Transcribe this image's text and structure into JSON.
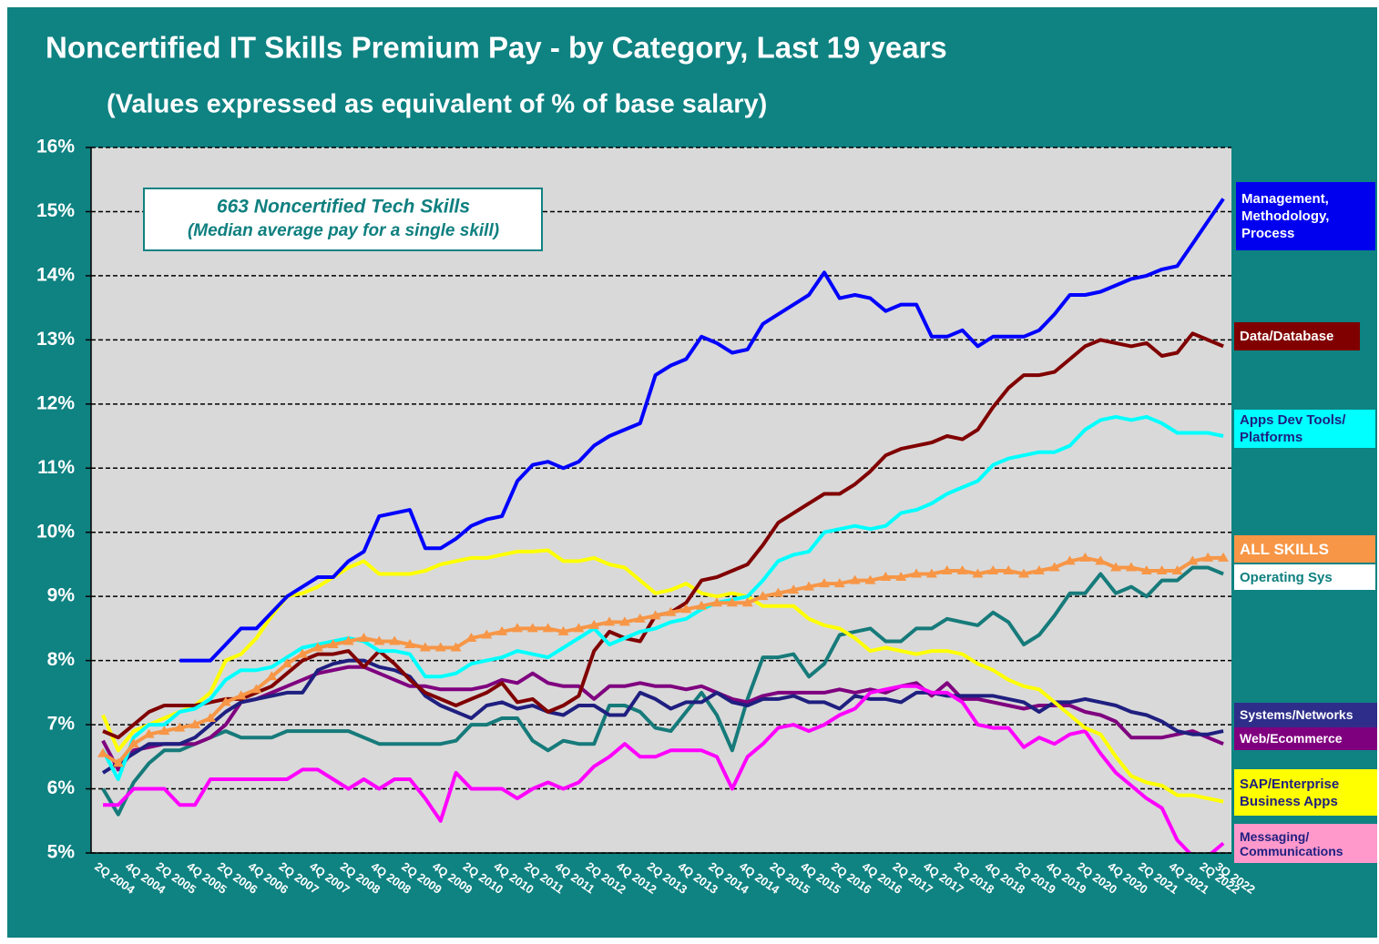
{
  "chart_data": {
    "type": "line",
    "title": "Noncertified IT Skills Premium Pay - by Category, Last 19 years",
    "subtitle": "(Values expressed as equivalent of % of base salary)",
    "annotations": [
      "663 Noncertified Tech Skills",
      "(Median average pay for a single skill)"
    ],
    "categories": [
      "2Q 2004",
      null,
      "4Q 2004",
      null,
      "2Q 2005",
      null,
      "4Q 2005",
      null,
      "2Q 2006",
      null,
      "4Q 2006",
      null,
      "2Q 2007",
      null,
      "4Q 2007",
      null,
      "2Q 2008",
      null,
      "4Q 2008",
      null,
      "2Q 2009",
      null,
      "4Q 2009",
      null,
      "2Q 2010",
      null,
      "4Q 2010",
      null,
      "2Q 2011",
      null,
      "4Q 2011",
      null,
      "2Q 2012",
      null,
      "4Q 2012",
      null,
      "2Q 2013",
      null,
      "4Q 2013",
      null,
      "2Q 2014",
      null,
      "4Q 2014",
      null,
      "2Q 2015",
      null,
      "4Q 2015",
      null,
      "2Q 2016",
      null,
      "4Q 2016",
      null,
      "2Q 2017",
      null,
      "4Q 2017",
      null,
      "2Q 2018",
      null,
      "4Q 2018",
      null,
      "2Q 2019",
      null,
      "4Q 2019",
      null,
      "2Q 2020",
      null,
      "4Q 2020",
      null,
      "2Q 2021",
      null,
      "4Q 2021",
      null,
      "2Q 2022",
      "3Q 2022"
    ],
    "ylim": [
      5,
      16
    ],
    "yticks": [
      {
        "value": 5,
        "label": "5%"
      },
      {
        "value": 6,
        "label": "6%"
      },
      {
        "value": 7,
        "label": "7%"
      },
      {
        "value": 8,
        "label": "8%"
      },
      {
        "value": 9,
        "label": "9%"
      },
      {
        "value": 10,
        "label": "10%"
      },
      {
        "value": 11,
        "label": "11%"
      },
      {
        "value": 12,
        "label": "12%"
      },
      {
        "value": 13,
        "label": "13%"
      },
      {
        "value": 14,
        "label": "14%"
      },
      {
        "value": 15,
        "label": "15%"
      },
      {
        "value": 16,
        "label": "16%"
      }
    ],
    "grid": true,
    "series": [
      {
        "name": "Management, Methodology, Process",
        "color": "#0000ff",
        "label_fill": "#0000ee",
        "label_text": "#ffffff",
        "values": [
          null,
          null,
          null,
          null,
          null,
          8.0,
          8.0,
          8.0,
          8.25,
          8.5,
          8.5,
          8.75,
          9.0,
          9.15,
          9.3,
          9.3,
          9.55,
          9.7,
          10.25,
          10.3,
          10.35,
          9.75,
          9.75,
          9.9,
          10.1,
          10.2,
          10.25,
          10.8,
          11.05,
          11.1,
          11.0,
          11.1,
          11.35,
          11.5,
          11.6,
          11.7,
          12.45,
          12.6,
          12.7,
          13.05,
          12.95,
          12.8,
          12.85,
          13.25,
          13.4,
          13.55,
          13.7,
          14.05,
          13.65,
          13.7,
          13.65,
          13.45,
          13.55,
          13.55,
          13.05,
          13.05,
          13.15,
          12.9,
          13.05,
          13.05,
          13.05,
          13.15,
          13.4,
          13.7,
          13.7,
          13.75,
          13.85,
          13.95,
          14.0,
          14.1,
          14.15,
          14.5,
          14.85,
          15.2
        ]
      },
      {
        "name": "Data/Database",
        "color": "#800000",
        "label_fill": "#800000",
        "label_text": "#ffffff",
        "values": [
          6.9,
          6.8,
          7.0,
          7.2,
          7.3,
          7.3,
          7.3,
          7.35,
          7.4,
          7.4,
          7.5,
          7.6,
          7.8,
          8.0,
          8.1,
          8.1,
          8.15,
          7.9,
          8.15,
          7.95,
          7.7,
          7.5,
          7.4,
          7.3,
          7.4,
          7.5,
          7.65,
          7.35,
          7.4,
          7.2,
          7.3,
          7.45,
          8.15,
          8.45,
          8.35,
          8.3,
          8.7,
          8.75,
          8.9,
          9.25,
          9.3,
          9.4,
          9.5,
          9.8,
          10.15,
          10.3,
          10.45,
          10.6,
          10.6,
          10.75,
          10.95,
          11.2,
          11.3,
          11.35,
          11.4,
          11.5,
          11.45,
          11.6,
          11.95,
          12.25,
          12.45,
          12.45,
          12.5,
          12.7,
          12.9,
          13.0,
          12.95,
          12.9,
          12.95,
          12.75,
          12.8,
          13.1,
          13.0,
          12.9
        ]
      },
      {
        "name": "Apps Dev Tools/ Platforms",
        "color": "#00ffff",
        "label_fill": "#00ffff",
        "label_text": "#1f1f80",
        "values": [
          6.6,
          6.15,
          6.8,
          7.0,
          7.0,
          7.2,
          7.25,
          7.4,
          7.7,
          7.85,
          7.85,
          7.9,
          8.05,
          8.2,
          8.25,
          8.3,
          8.35,
          8.3,
          8.15,
          8.15,
          8.1,
          7.75,
          7.75,
          7.8,
          7.95,
          8.0,
          8.05,
          8.15,
          8.1,
          8.05,
          8.2,
          8.35,
          8.5,
          8.25,
          8.35,
          8.45,
          8.5,
          8.6,
          8.65,
          8.8,
          8.9,
          8.95,
          9.0,
          9.25,
          9.55,
          9.65,
          9.7,
          10.0,
          10.05,
          10.1,
          10.05,
          10.1,
          10.3,
          10.35,
          10.45,
          10.6,
          10.7,
          10.8,
          11.05,
          11.15,
          11.2,
          11.25,
          11.25,
          11.35,
          11.6,
          11.75,
          11.8,
          11.75,
          11.8,
          11.7,
          11.55,
          11.55,
          11.55,
          11.5
        ]
      },
      {
        "name": "ALL SKILLS",
        "color": "#f79646",
        "label_fill": "#f79646",
        "label_text": "#ffffff",
        "markers": true,
        "values": [
          6.55,
          6.4,
          6.7,
          6.85,
          6.9,
          6.95,
          7.0,
          7.1,
          7.35,
          7.45,
          7.55,
          7.75,
          7.95,
          8.1,
          8.2,
          8.25,
          8.3,
          8.35,
          8.3,
          8.3,
          8.25,
          8.2,
          8.2,
          8.2,
          8.35,
          8.4,
          8.45,
          8.5,
          8.5,
          8.5,
          8.45,
          8.5,
          8.55,
          8.6,
          8.6,
          8.65,
          8.7,
          8.75,
          8.8,
          8.85,
          8.9,
          8.9,
          8.9,
          9.0,
          9.05,
          9.1,
          9.15,
          9.2,
          9.2,
          9.25,
          9.25,
          9.3,
          9.3,
          9.35,
          9.35,
          9.4,
          9.4,
          9.35,
          9.4,
          9.4,
          9.35,
          9.4,
          9.45,
          9.55,
          9.6,
          9.55,
          9.45,
          9.45,
          9.4,
          9.4,
          9.4,
          9.55,
          9.6,
          9.6
        ]
      },
      {
        "name": "Operating Sys",
        "color": "#167a7a",
        "label_fill": "#ffffff",
        "label_text": "#0f7f7f",
        "values": [
          6.0,
          5.6,
          6.1,
          6.4,
          6.6,
          6.6,
          6.7,
          6.8,
          6.9,
          6.8,
          6.8,
          6.8,
          6.9,
          6.9,
          6.9,
          6.9,
          6.9,
          6.8,
          6.7,
          6.7,
          6.7,
          6.7,
          6.7,
          6.75,
          7.0,
          7.0,
          7.1,
          7.1,
          6.75,
          6.6,
          6.75,
          6.7,
          6.7,
          7.3,
          7.3,
          7.2,
          6.95,
          6.9,
          7.2,
          7.5,
          7.15,
          6.6,
          7.4,
          8.05,
          8.05,
          8.1,
          7.75,
          7.95,
          8.4,
          8.45,
          8.5,
          8.3,
          8.3,
          8.5,
          8.5,
          8.65,
          8.6,
          8.55,
          8.75,
          8.6,
          8.25,
          8.4,
          8.7,
          9.05,
          9.05,
          9.35,
          9.05,
          9.15,
          9.0,
          9.25,
          9.25,
          9.45,
          9.45,
          9.35
        ]
      },
      {
        "name": "Systems/Networks",
        "color": "#1f1f80",
        "label_fill": "#2e2e8a",
        "label_text": "#ffffff",
        "values": [
          6.25,
          6.4,
          6.55,
          6.7,
          6.7,
          6.7,
          6.8,
          7.0,
          7.2,
          7.35,
          7.4,
          7.45,
          7.5,
          7.5,
          7.85,
          7.95,
          8.0,
          8.0,
          7.9,
          7.85,
          7.75,
          7.45,
          7.3,
          7.2,
          7.1,
          7.3,
          7.35,
          7.25,
          7.3,
          7.2,
          7.15,
          7.3,
          7.3,
          7.15,
          7.15,
          7.5,
          7.4,
          7.25,
          7.35,
          7.35,
          7.5,
          7.35,
          7.3,
          7.4,
          7.4,
          7.45,
          7.35,
          7.35,
          7.25,
          7.45,
          7.4,
          7.4,
          7.35,
          7.5,
          7.5,
          7.45,
          7.45,
          7.45,
          7.45,
          7.4,
          7.35,
          7.2,
          7.35,
          7.35,
          7.4,
          7.35,
          7.3,
          7.2,
          7.15,
          7.05,
          6.9,
          6.85,
          6.85,
          6.9
        ]
      },
      {
        "name": "Web/Ecommerce",
        "color": "#7f007f",
        "label_fill": "#7f007f",
        "label_text": "#ffffff",
        "values": [
          6.75,
          6.3,
          6.6,
          6.65,
          6.7,
          6.7,
          6.7,
          6.8,
          7.0,
          7.35,
          7.4,
          7.5,
          7.6,
          7.7,
          7.8,
          7.85,
          7.9,
          7.9,
          7.8,
          7.7,
          7.6,
          7.6,
          7.55,
          7.55,
          7.55,
          7.6,
          7.7,
          7.65,
          7.8,
          7.65,
          7.6,
          7.6,
          7.4,
          7.6,
          7.6,
          7.65,
          7.6,
          7.6,
          7.55,
          7.6,
          7.5,
          7.4,
          7.35,
          7.45,
          7.5,
          7.5,
          7.5,
          7.5,
          7.55,
          7.5,
          7.55,
          7.5,
          7.6,
          7.65,
          7.45,
          7.65,
          7.4,
          7.4,
          7.35,
          7.3,
          7.25,
          7.3,
          7.3,
          7.3,
          7.2,
          7.15,
          7.05,
          6.8,
          6.8,
          6.8,
          6.85,
          6.9,
          6.8,
          6.7
        ]
      },
      {
        "name": "SAP/Enterprise Business Apps",
        "color": "#ffff00",
        "label_fill": "#ffff00",
        "label_text": "#1f1f80",
        "values": [
          7.15,
          6.6,
          6.9,
          7.0,
          7.1,
          7.2,
          7.3,
          7.5,
          8.0,
          8.1,
          8.35,
          8.7,
          9.0,
          9.05,
          9.15,
          9.3,
          9.45,
          9.55,
          9.35,
          9.35,
          9.35,
          9.4,
          9.5,
          9.55,
          9.6,
          9.6,
          9.65,
          9.7,
          9.7,
          9.72,
          9.55,
          9.55,
          9.6,
          9.5,
          9.45,
          9.25,
          9.05,
          9.1,
          9.2,
          9.05,
          9.0,
          9.05,
          9.0,
          8.85,
          8.85,
          8.85,
          8.65,
          8.55,
          8.5,
          8.35,
          8.15,
          8.2,
          8.15,
          8.1,
          8.15,
          8.15,
          8.1,
          7.95,
          7.85,
          7.7,
          7.6,
          7.55,
          7.35,
          7.15,
          6.95,
          6.85,
          6.5,
          6.2,
          6.1,
          6.05,
          5.9,
          5.9,
          5.85,
          5.8
        ]
      },
      {
        "name": "Messaging/ Communications",
        "color": "#ff00ff",
        "label_fill": "#ff99cc",
        "label_text": "#1f1f80",
        "values": [
          5.75,
          5.75,
          6.0,
          6.0,
          6.0,
          5.75,
          5.75,
          6.15,
          6.15,
          6.15,
          6.15,
          6.15,
          6.15,
          6.3,
          6.3,
          6.15,
          6.0,
          6.15,
          6.0,
          6.15,
          6.15,
          5.85,
          5.5,
          6.25,
          6.0,
          6.0,
          6.0,
          5.85,
          6.0,
          6.1,
          6.0,
          6.1,
          6.35,
          6.5,
          6.7,
          6.5,
          6.5,
          6.6,
          6.6,
          6.6,
          6.5,
          6.0,
          6.5,
          6.7,
          6.95,
          7.0,
          6.9,
          7.0,
          7.15,
          7.25,
          7.5,
          7.55,
          7.6,
          7.6,
          7.5,
          7.5,
          7.35,
          7.0,
          6.95,
          6.95,
          6.65,
          6.8,
          6.7,
          6.85,
          6.9,
          6.55,
          6.25,
          6.05,
          5.85,
          5.7,
          5.2,
          4.95,
          4.95,
          5.15
        ]
      }
    ]
  }
}
